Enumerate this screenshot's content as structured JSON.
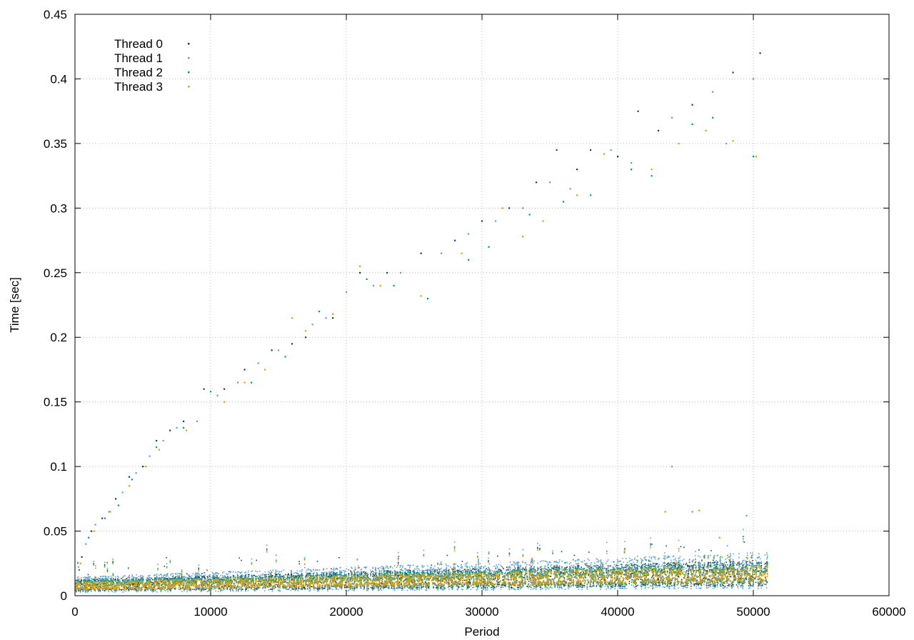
{
  "chart_data": {
    "type": "scatter",
    "xlabel": "Period",
    "ylabel": "Time [sec]",
    "xlim": [
      0,
      60000
    ],
    "ylim": [
      0,
      0.45
    ],
    "x_ticks": [
      0,
      10000,
      20000,
      30000,
      40000,
      50000,
      60000
    ],
    "y_ticks": [
      0,
      0.05,
      0.1,
      0.15,
      0.2,
      0.25,
      0.3,
      0.35,
      0.4,
      0.45
    ],
    "x_tick_labels": [
      "0",
      "10000",
      "20000",
      "30000",
      "40000",
      "50000",
      "60000"
    ],
    "y_tick_labels": [
      "0",
      "0.05",
      "0.1",
      "0.15",
      "0.2",
      "0.25",
      "0.3",
      "0.35",
      "0.4",
      "0.45"
    ],
    "grid": true,
    "legend_position": "top-left",
    "series": [
      {
        "name": "Thread 0",
        "color": "#1a3f5c",
        "band": {
          "x_range": [
            0,
            51000
          ],
          "y_start_range": [
            0.004,
            0.013
          ],
          "y_end_range": [
            0.008,
            0.028
          ]
        },
        "spike_points": [
          [
            500,
            0.03
          ],
          [
            1200,
            0.05
          ],
          [
            2000,
            0.06
          ],
          [
            3000,
            0.075
          ],
          [
            4000,
            0.092
          ],
          [
            5000,
            0.1
          ],
          [
            6000,
            0.12
          ],
          [
            7000,
            0.128
          ],
          [
            8000,
            0.135
          ],
          [
            9500,
            0.16
          ],
          [
            11000,
            0.16
          ],
          [
            12500,
            0.175
          ],
          [
            14500,
            0.19
          ],
          [
            16000,
            0.195
          ],
          [
            17000,
            0.2
          ],
          [
            19000,
            0.215
          ],
          [
            21000,
            0.25
          ],
          [
            23000,
            0.25
          ],
          [
            25500,
            0.265
          ],
          [
            28000,
            0.275
          ],
          [
            30000,
            0.29
          ],
          [
            32000,
            0.3
          ],
          [
            34000,
            0.32
          ],
          [
            35500,
            0.345
          ],
          [
            37000,
            0.33
          ],
          [
            38000,
            0.345
          ],
          [
            40000,
            0.34
          ],
          [
            41500,
            0.375
          ],
          [
            43000,
            0.36
          ],
          [
            45500,
            0.38
          ],
          [
            48500,
            0.405
          ],
          [
            50500,
            0.42
          ]
        ]
      },
      {
        "name": "Thread 1",
        "color": "#56a5d2",
        "band": {
          "x_range": [
            0,
            51000
          ],
          "y_start_range": [
            0.003,
            0.015
          ],
          "y_end_range": [
            0.006,
            0.034
          ]
        },
        "spike_points": [
          [
            800,
            0.04
          ],
          [
            1500,
            0.055
          ],
          [
            2500,
            0.065
          ],
          [
            3500,
            0.08
          ],
          [
            4500,
            0.095
          ],
          [
            5500,
            0.108
          ],
          [
            6500,
            0.12
          ],
          [
            7500,
            0.13
          ],
          [
            9000,
            0.135
          ],
          [
            10500,
            0.155
          ],
          [
            12000,
            0.165
          ],
          [
            13500,
            0.18
          ],
          [
            15000,
            0.19
          ],
          [
            17500,
            0.21
          ],
          [
            18500,
            0.215
          ],
          [
            20000,
            0.235
          ],
          [
            22000,
            0.24
          ],
          [
            24000,
            0.25
          ],
          [
            27000,
            0.265
          ],
          [
            29000,
            0.28
          ],
          [
            31000,
            0.29
          ],
          [
            33000,
            0.3
          ],
          [
            35000,
            0.32
          ],
          [
            36500,
            0.315
          ],
          [
            39500,
            0.345
          ],
          [
            41000,
            0.335
          ],
          [
            44000,
            0.37
          ],
          [
            47000,
            0.39
          ],
          [
            48000,
            0.35
          ],
          [
            50000,
            0.4
          ],
          [
            44000,
            0.1
          ],
          [
            45500,
            0.065
          ],
          [
            49500,
            0.062
          ]
        ]
      },
      {
        "name": "Thread 2",
        "color": "#009e73",
        "band": {
          "x_range": [
            0,
            51000
          ],
          "y_start_range": [
            0.005,
            0.012
          ],
          "y_end_range": [
            0.01,
            0.026
          ]
        },
        "spike_points": [
          [
            300,
            0.02
          ],
          [
            1000,
            0.045
          ],
          [
            2200,
            0.06
          ],
          [
            3200,
            0.07
          ],
          [
            4200,
            0.09
          ],
          [
            6000,
            0.115
          ],
          [
            8000,
            0.13
          ],
          [
            10000,
            0.158
          ],
          [
            13000,
            0.165
          ],
          [
            15500,
            0.185
          ],
          [
            18000,
            0.22
          ],
          [
            21500,
            0.245
          ],
          [
            23500,
            0.24
          ],
          [
            26000,
            0.23
          ],
          [
            29000,
            0.26
          ],
          [
            30500,
            0.27
          ],
          [
            33500,
            0.295
          ],
          [
            36000,
            0.305
          ],
          [
            38000,
            0.31
          ],
          [
            41000,
            0.33
          ],
          [
            42500,
            0.325
          ],
          [
            45500,
            0.365
          ],
          [
            47000,
            0.37
          ],
          [
            50000,
            0.34
          ]
        ]
      },
      {
        "name": "Thread 3",
        "color": "#e69f00",
        "band": {
          "x_range": [
            0,
            51000
          ],
          "y_start_range": [
            0.005,
            0.011
          ],
          "y_end_range": [
            0.011,
            0.024
          ]
        },
        "spike_points": [
          [
            400,
            0.025
          ],
          [
            1400,
            0.05
          ],
          [
            2600,
            0.065
          ],
          [
            4000,
            0.085
          ],
          [
            5200,
            0.1
          ],
          [
            6200,
            0.113
          ],
          [
            8200,
            0.128
          ],
          [
            11000,
            0.15
          ],
          [
            12500,
            0.165
          ],
          [
            14000,
            0.175
          ],
          [
            16000,
            0.215
          ],
          [
            17000,
            0.205
          ],
          [
            19000,
            0.218
          ],
          [
            21000,
            0.255
          ],
          [
            22500,
            0.24
          ],
          [
            25500,
            0.232
          ],
          [
            28500,
            0.265
          ],
          [
            31500,
            0.3
          ],
          [
            33000,
            0.278
          ],
          [
            34500,
            0.29
          ],
          [
            37000,
            0.31
          ],
          [
            39000,
            0.342
          ],
          [
            42500,
            0.33
          ],
          [
            44500,
            0.35
          ],
          [
            46500,
            0.36
          ],
          [
            48500,
            0.352
          ],
          [
            50200,
            0.34
          ],
          [
            43500,
            0.065
          ],
          [
            46000,
            0.066
          ],
          [
            47500,
            0.045
          ]
        ]
      }
    ]
  }
}
